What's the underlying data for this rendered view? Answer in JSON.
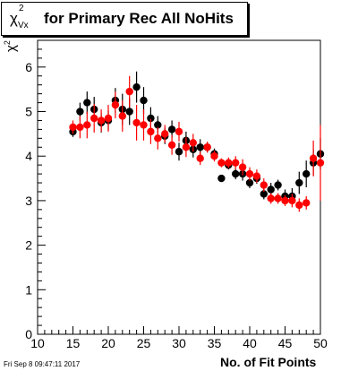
{
  "title": {
    "symbol": "χ",
    "superscript": "2",
    "subscript": "Vx",
    "text": "for Primary Rec All NoHits"
  },
  "ylabel_text": "χ",
  "ylabel_sup": "2",
  "xlabel": "No. of Fit Points",
  "timestamp": "Fri Sep  8 09:47:11 2017",
  "chart_data": {
    "type": "scatter",
    "title": "χ²Vx for Primary Rec All NoHits",
    "xlabel": "No. of Fit Points",
    "ylabel": "χ²",
    "xlim": [
      10,
      50
    ],
    "ylim": [
      0,
      6.6
    ],
    "xticks": [
      10,
      15,
      20,
      25,
      30,
      35,
      40,
      45,
      50
    ],
    "yticks": [
      0,
      1,
      2,
      3,
      4,
      5,
      6
    ],
    "grid": false,
    "colors": {
      "black": "#000000",
      "red": "#ff0000"
    },
    "series": [
      {
        "color": "black",
        "x": [
          15,
          16,
          17,
          18,
          19,
          20,
          21,
          22,
          23,
          24,
          25,
          26,
          27,
          28,
          29,
          30,
          31,
          32,
          33,
          34,
          35,
          36,
          37,
          38,
          39,
          40,
          41,
          42,
          43,
          44,
          45,
          46,
          47,
          48,
          49,
          50
        ],
        "y": [
          4.55,
          5.0,
          5.2,
          5.05,
          4.75,
          4.8,
          5.25,
          5.05,
          5.0,
          5.55,
          5.25,
          4.85,
          4.7,
          4.45,
          4.6,
          4.1,
          4.35,
          4.15,
          4.2,
          4.2,
          4.05,
          3.5,
          3.8,
          3.6,
          3.6,
          3.4,
          3.5,
          3.15,
          3.25,
          3.35,
          3.1,
          3.1,
          3.4,
          3.6,
          3.85,
          4.05
        ],
        "err": [
          0.12,
          0.2,
          0.25,
          0.28,
          0.22,
          0.22,
          0.28,
          0.35,
          0.3,
          0.35,
          0.3,
          0.25,
          0.2,
          0.18,
          0.2,
          0.2,
          0.2,
          0.18,
          0.18,
          0.12,
          0.12,
          0.08,
          0.1,
          0.12,
          0.15,
          0.12,
          0.12,
          0.12,
          0.15,
          0.12,
          0.15,
          0.18,
          0.25,
          0.3,
          0.3,
          0.35
        ]
      },
      {
        "color": "red",
        "x": [
          15,
          16,
          17,
          18,
          19,
          20,
          21,
          22,
          23,
          24,
          25,
          26,
          27,
          28,
          29,
          30,
          31,
          32,
          33,
          34,
          35,
          36,
          37,
          38,
          39,
          40,
          41,
          42,
          43,
          44,
          45,
          46,
          47,
          48,
          49,
          50
        ],
        "y": [
          4.65,
          4.65,
          4.7,
          4.85,
          4.8,
          4.85,
          5.15,
          4.9,
          5.45,
          4.75,
          4.7,
          4.55,
          4.4,
          4.5,
          4.25,
          4.55,
          4.2,
          4.3,
          3.95,
          4.2,
          4.0,
          3.85,
          3.85,
          3.85,
          3.75,
          3.6,
          3.55,
          3.35,
          3.05,
          3.05,
          3.0,
          3.0,
          2.9,
          2.95,
          3.95,
          3.85
        ],
        "err": [
          0.15,
          0.25,
          0.3,
          0.32,
          0.25,
          0.3,
          0.3,
          0.35,
          0.35,
          0.4,
          0.35,
          0.28,
          0.25,
          0.2,
          0.22,
          0.22,
          0.22,
          0.2,
          0.15,
          0.12,
          0.12,
          0.1,
          0.12,
          0.15,
          0.18,
          0.15,
          0.15,
          0.15,
          0.12,
          0.12,
          0.12,
          0.15,
          0.15,
          0.15,
          0.4,
          0.85
        ]
      }
    ]
  }
}
